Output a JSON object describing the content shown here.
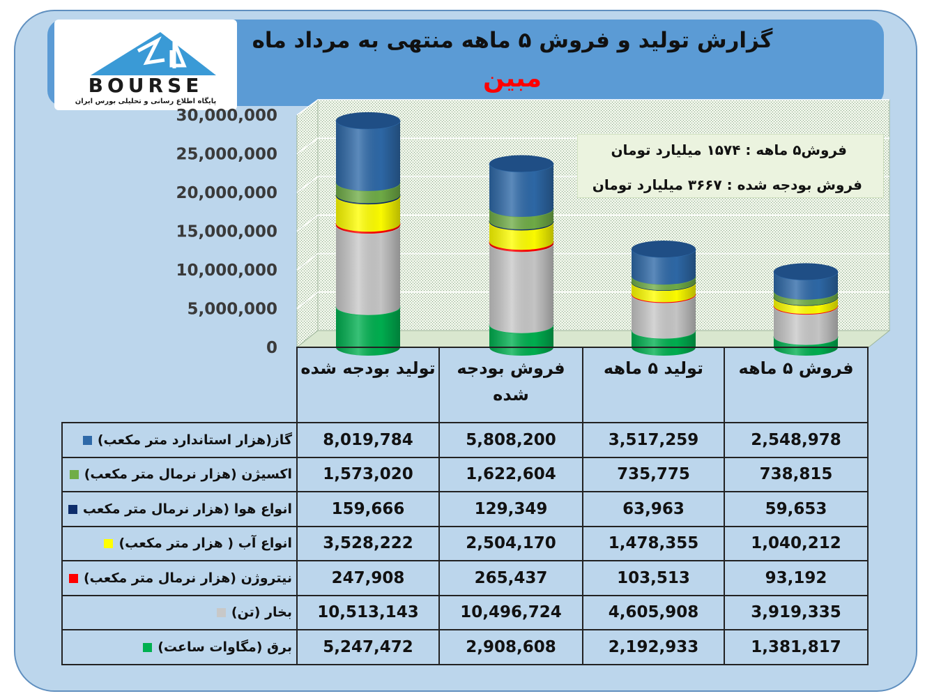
{
  "page": {
    "title": "گزارش تولید و فروش ۵ ماهه منتهی به مرداد ماه",
    "company": "مبین"
  },
  "logo": {
    "icon": "bourse24-logo",
    "text": "BOURSE",
    "tagline": "پایگاه اطلاع رسانی و تحلیلی بورس ایران"
  },
  "summary": {
    "line1": "فروش۵ ماهه : ۱۵۷۴ میلیارد تومان",
    "line2": "فروش بودجه شده : ۳۶۶۷ میلیارد تومان"
  },
  "chart_data": {
    "type": "bar",
    "stacked": true,
    "style": "3d-cylinder",
    "categories": [
      "تولید بودجه شده",
      "فروش بودجه شده",
      "تولید ۵ ماهه",
      "فروش ۵ ماهه"
    ],
    "yticks": [
      "0",
      "5,000,000",
      "10,000,000",
      "15,000,000",
      "20,000,000",
      "25,000,000",
      "30,000,000"
    ],
    "ylim": [
      0,
      30000000
    ],
    "grid": true,
    "stack_order": [
      "برق (مگاوات ساعت)",
      "بخار (تن)",
      "نیتروژن (هزار نرمال متر مکعب)",
      "انواع آب ( هزار متر مکعب)",
      "انواع هوا (هزار نرمال متر مکعب",
      "اکسیژن (هزار نرمال متر مکعب)",
      "گاز(هزار استاندارد متر مکعب)"
    ],
    "series": [
      {
        "name": "گاز(هزار استاندارد متر مکعب)",
        "color": "#2e69a8",
        "values": [
          8019784,
          5808200,
          3517259,
          2548978
        ],
        "labels": [
          "8,019,784",
          "5,808,200",
          "3,517,259",
          "2,548,978"
        ]
      },
      {
        "name": "اکسیژن (هزار نرمال متر مکعب)",
        "color": "#70ad47",
        "values": [
          1573020,
          1622604,
          735775,
          738815
        ],
        "labels": [
          "1,573,020",
          "1,622,604",
          "735,775",
          "738,815"
        ]
      },
      {
        "name": "انواع هوا (هزار نرمال متر مکعب",
        "color": "#0d2d6b",
        "values": [
          159666,
          129349,
          63963,
          59653
        ],
        "labels": [
          "159,666",
          "129,349",
          "63,963",
          "59,653"
        ]
      },
      {
        "name": "انواع آب ( هزار متر مکعب)",
        "color": "#ffff00",
        "values": [
          3528222,
          2504170,
          1478355,
          1040212
        ],
        "labels": [
          "3,528,222",
          "2,504,170",
          "1,478,355",
          "1,040,212"
        ]
      },
      {
        "name": "نیتروژن (هزار نرمال متر مکعب)",
        "color": "#ff0000",
        "values": [
          247908,
          265437,
          103513,
          93192
        ],
        "labels": [
          "247,908",
          "265,437",
          "103,513",
          "93,192"
        ]
      },
      {
        "name": "بخار (تن)",
        "color": "#c8c8c8",
        "values": [
          10513143,
          10496724,
          4605908,
          3919335
        ],
        "labels": [
          "10,513,143",
          "10,496,724",
          "4,605,908",
          "3,919,335"
        ]
      },
      {
        "name": "برق (مگاوات ساعت)",
        "color": "#00b050",
        "values": [
          5247472,
          2908608,
          2192933,
          1381817
        ],
        "labels": [
          "5,247,472",
          "2,908,608",
          "2,192,933",
          "1,381,817"
        ]
      }
    ]
  }
}
